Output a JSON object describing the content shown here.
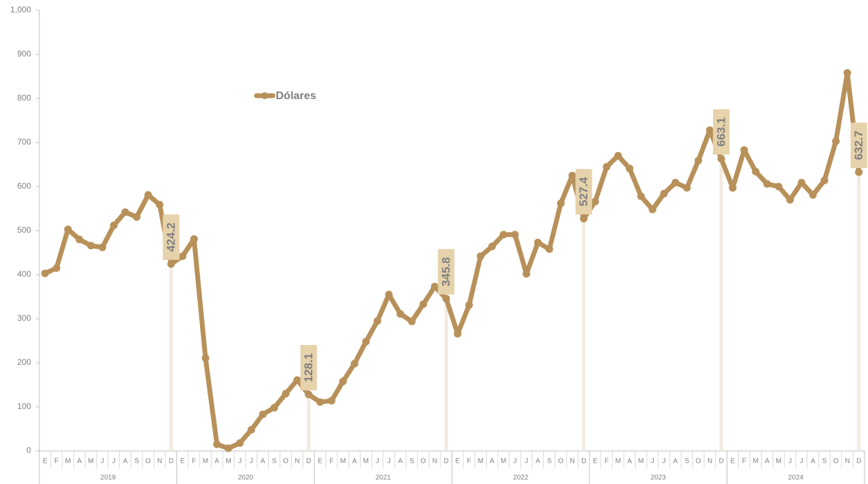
{
  "chart_data": {
    "type": "line",
    "categories": [
      "E",
      "F",
      "M",
      "A",
      "M",
      "J",
      "J",
      "A",
      "S",
      "O",
      "N",
      "D",
      "E",
      "F",
      "M",
      "A",
      "M",
      "J",
      "J",
      "A",
      "S",
      "O",
      "N",
      "D",
      "E",
      "F",
      "M",
      "A",
      "M",
      "J",
      "J",
      "A",
      "S",
      "O",
      "N",
      "D",
      "E",
      "F",
      "M",
      "A",
      "M",
      "J",
      "J",
      "A",
      "S",
      "O",
      "N",
      "D",
      "E",
      "F",
      "M",
      "A",
      "M",
      "J",
      "J",
      "A",
      "S",
      "O",
      "N",
      "D",
      "E",
      "F",
      "M",
      "A",
      "M",
      "J",
      "J",
      "A",
      "S",
      "O",
      "N",
      "D"
    ],
    "year_groups": [
      "2019",
      "2020",
      "2021",
      "2022",
      "2023",
      "2024"
    ],
    "series": [
      {
        "name": "Dólares",
        "color": "#b8915a",
        "values": [
          403,
          415,
          503,
          480,
          466,
          462,
          512,
          542,
          531,
          581,
          559,
          424.2,
          442,
          481,
          211,
          15,
          6,
          18,
          48,
          83,
          98,
          130,
          161,
          128.1,
          111,
          114,
          158,
          198,
          248,
          295,
          355,
          311,
          294,
          333,
          373,
          345.8,
          266,
          331,
          442,
          464,
          491,
          491,
          402,
          473,
          458,
          562,
          625,
          527.4,
          566,
          645,
          670,
          641,
          578,
          548,
          584,
          609,
          597,
          659,
          728,
          663.1,
          597,
          683,
          634,
          606,
          600,
          570,
          609,
          581,
          614,
          703,
          858,
          632.7
        ]
      }
    ],
    "ylim": [
      0,
      1000
    ],
    "yticks": [
      0,
      100,
      200,
      300,
      400,
      500,
      600,
      700,
      800,
      900,
      {
        "value": 1000,
        "label": "1,000"
      }
    ],
    "grid": false
  }
}
